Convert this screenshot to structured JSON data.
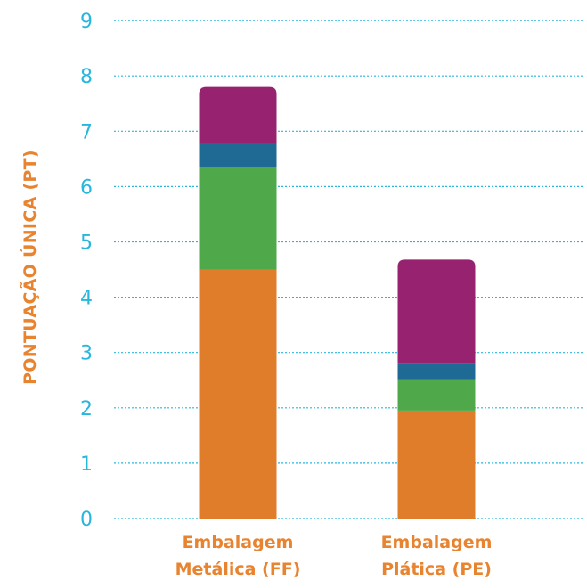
{
  "chart_data": {
    "type": "bar",
    "stacked": true,
    "ylabel": "PONTUAÇÃO ÚNICA (PT)",
    "xlabel": "",
    "ylim": [
      0,
      9
    ],
    "yticks": [
      0,
      1,
      2,
      3,
      4,
      5,
      6,
      7,
      8,
      9
    ],
    "grid": true,
    "categories": [
      "Embalagem Metálica (FF)",
      "Embalagem Plática (PE)"
    ],
    "series": [
      {
        "color": "#e07d2a",
        "values": [
          4.5,
          1.95
        ]
      },
      {
        "color": "#4fa84a",
        "values": [
          1.85,
          0.57
        ]
      },
      {
        "color": "#1e6a94",
        "values": [
          0.43,
          0.28
        ]
      },
      {
        "color": "#97226f",
        "values": [
          1.02,
          1.88
        ]
      }
    ]
  },
  "colors": {
    "axis_label": "#e8832f",
    "tick_label": "#29b6dd",
    "grid": "#29b6dd",
    "category_label": "#e8832f"
  }
}
